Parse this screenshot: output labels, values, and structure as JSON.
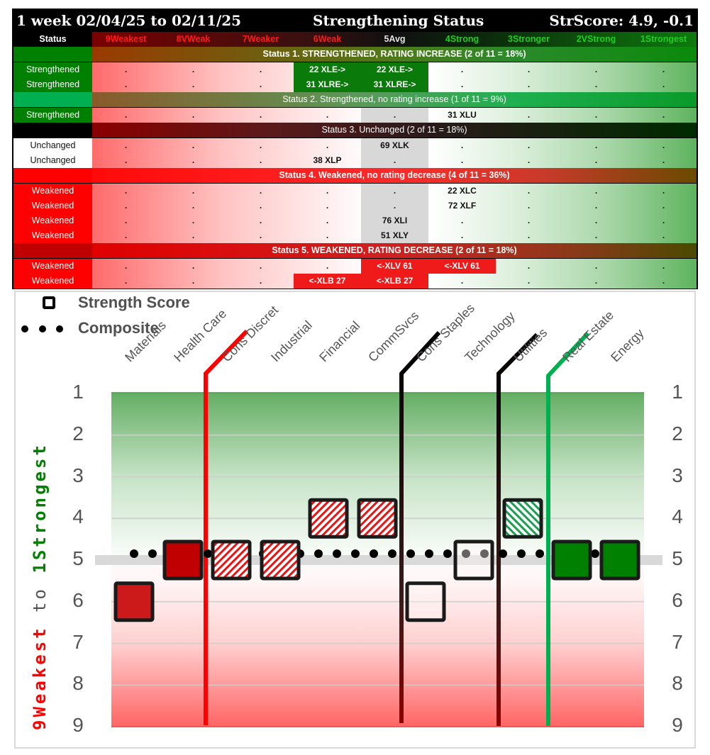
{
  "table": {
    "title_left": "1 week 02/04/25 to 02/11/25",
    "title_center": "Strengthening Status",
    "title_right": "StrScore: 4.9, -0.1",
    "header": {
      "status": "Status",
      "columns": [
        "9Weakest",
        "8VWeak",
        "7Weaker",
        "6Weak",
        "5Avg",
        "4Strong",
        "3Stronger",
        "2VStrong",
        "1Strongest"
      ],
      "column_colors": [
        "#ff1a1a",
        "#ff1a1a",
        "#ff1a1a",
        "#ff1a1a",
        "#e0e0e0",
        "#22cc22",
        "#22cc22",
        "#22cc22",
        "#22cc22"
      ]
    },
    "groups": [
      {
        "label": "Status 1. STRENGTHENED, RATING INCREASE (2 of 11 = 18%)",
        "rows": [
          {
            "status": "Strengthened",
            "cells": [
              ".",
              ".",
              ".",
              "22 XLE->",
              "22 XLE->",
              ".",
              ".",
              ".",
              "."
            ]
          },
          {
            "status": "Strengthened",
            "cells": [
              ".",
              ".",
              ".",
              "31 XLRE->",
              "31 XLRE->",
              ".",
              ".",
              ".",
              "."
            ]
          }
        ]
      },
      {
        "label": "Status 2. Strengthened, no rating increase (1 of 11 = 9%)",
        "rows": [
          {
            "status": "Strengthened",
            "cells": [
              ".",
              ".",
              ".",
              ".",
              ".",
              "31 XLU",
              ".",
              ".",
              "."
            ]
          }
        ]
      },
      {
        "label": "Status 3. Unchanged (2 of 11 = 18%)",
        "rows": [
          {
            "status": "Unchanged",
            "cells": [
              ".",
              ".",
              ".",
              ".",
              "69 XLK",
              ".",
              ".",
              ".",
              "."
            ]
          },
          {
            "status": "Unchanged",
            "cells": [
              ".",
              ".",
              ".",
              "38 XLP",
              ".",
              ".",
              ".",
              ".",
              "."
            ]
          }
        ]
      },
      {
        "label": "Status 4. Weakened, no rating decrease (4 of 11 = 36%)",
        "rows": [
          {
            "status": "Weakened",
            "cells": [
              ".",
              ".",
              ".",
              ".",
              ".",
              "22 XLC",
              ".",
              ".",
              "."
            ]
          },
          {
            "status": "Weakened",
            "cells": [
              ".",
              ".",
              ".",
              ".",
              ".",
              "72 XLF",
              ".",
              ".",
              "."
            ]
          },
          {
            "status": "Weakened",
            "cells": [
              ".",
              ".",
              ".",
              ".",
              "76 XLI",
              ".",
              ".",
              ".",
              "."
            ]
          },
          {
            "status": "Weakened",
            "cells": [
              ".",
              ".",
              ".",
              ".",
              "51 XLY",
              ".",
              ".",
              ".",
              "."
            ]
          }
        ]
      },
      {
        "label": "Status 5. WEAKENED, RATING DECREASE (2 of 11 = 18%)",
        "rows": [
          {
            "status": "Weakened",
            "cells": [
              ".",
              ".",
              ".",
              ".",
              "<-XLV 61",
              "<-XLV 61",
              ".",
              ".",
              "."
            ]
          },
          {
            "status": "Weakened",
            "cells": [
              ".",
              ".",
              ".",
              "<-XLB 27",
              "<-XLB 27",
              ".",
              ".",
              ".",
              "."
            ]
          }
        ]
      }
    ]
  },
  "legend": {
    "strength_score": "Strength Score",
    "composite": "Composite"
  },
  "chart_data": {
    "type": "scatter",
    "title": "",
    "xlabel": "",
    "ylabel": "9Weakest to 1Strongest",
    "ylabel_parts": [
      "9Weakest",
      " to ",
      "1Strongest"
    ],
    "ylim": [
      9,
      1
    ],
    "yticks": [
      "1",
      "2",
      "3",
      "4",
      "5",
      "6",
      "7",
      "8",
      "9"
    ],
    "categories": [
      "Materials",
      "Health Care",
      "Cons Discret",
      "Industrial",
      "Financial",
      "CommSvcs",
      "Cons Staples",
      "Technology",
      "Utilities",
      "Real Estate",
      "Energy"
    ],
    "series": [
      {
        "name": "Strength Score",
        "values": [
          6,
          5,
          5,
          5,
          4,
          4,
          6,
          5,
          4,
          5,
          5
        ],
        "fill": [
          "solid-red",
          "solid-dark-red",
          "hatched-red",
          "hatched-red",
          "hatched-red",
          "hatched-red",
          "empty",
          "empty",
          "hatched-green",
          "solid-green",
          "solid-green"
        ]
      },
      {
        "name": "Composite",
        "values": [
          4.9,
          4.9,
          4.9,
          4.9,
          4.9,
          4.9,
          4.9,
          4.9,
          4.9,
          4.9,
          4.9
        ]
      }
    ],
    "reference_line": 5,
    "rating_change_markers": [
      {
        "between": [
          "Health Care",
          "Cons Discret"
        ],
        "color": "#ff0000",
        "label": "Health Care"
      },
      {
        "between": [
          "CommSvcs",
          "Cons Staples"
        ],
        "color": "#000000",
        "label": "CommSvcs"
      },
      {
        "between": [
          "Technology",
          "Utilities"
        ],
        "color": "#000000",
        "label": "Technology"
      },
      {
        "between": [
          "Utilities",
          "Real Estate"
        ],
        "color": "#00b050",
        "label": "Utilities"
      }
    ],
    "grid": true,
    "legend_position": "top-left"
  },
  "colors": {
    "strong_green": "#008000",
    "weak_red": "#ff0000",
    "mid_green": "#00b050",
    "avg_gray": "#d9d9d9"
  }
}
